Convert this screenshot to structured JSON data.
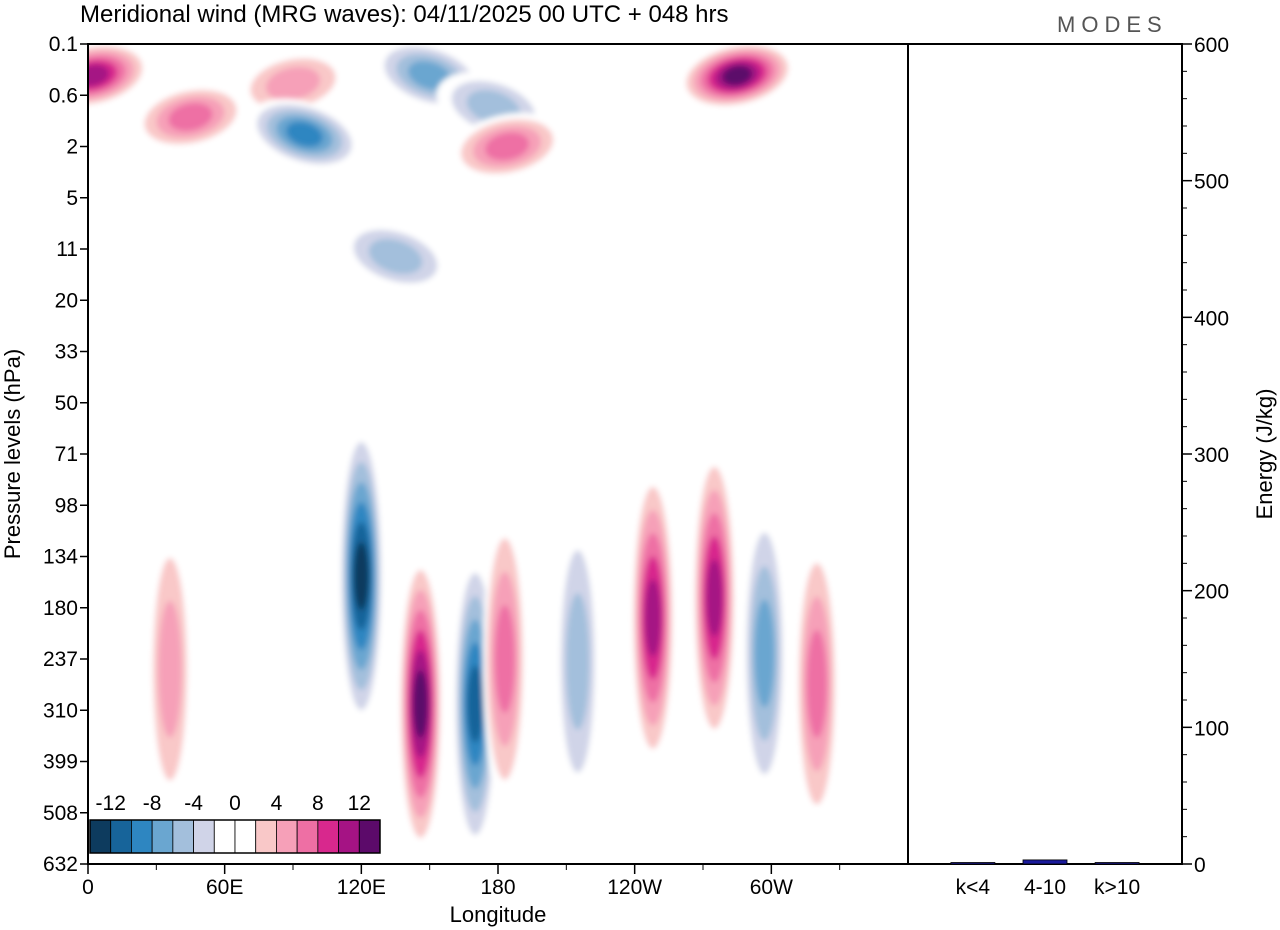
{
  "chart_data": [
    {
      "type": "heatmap",
      "title": "Meridional wind (MRG waves):  04/11/2025  00 UTC  + 048 hrs",
      "brand": "MODES",
      "xlabel": "Longitude",
      "ylabel": "Pressure levels (hPa)",
      "x_ticks": [
        "0",
        "60E",
        "120E",
        "180",
        "120W",
        "60W"
      ],
      "y_ticks": [
        "0.1",
        "0.6",
        "2",
        "5",
        "11",
        "20",
        "33",
        "50",
        "71",
        "98",
        "134",
        "180",
        "237",
        "310",
        "399",
        "508",
        "632"
      ],
      "colorbar": {
        "labels": [
          "-12",
          "-8",
          "-4",
          "0",
          "4",
          "8",
          "12"
        ],
        "colors": [
          "#0d3b5e",
          "#17649a",
          "#2e86c1",
          "#6aa6d0",
          "#a3bfdc",
          "#d0d4e8",
          "#ffffff",
          "#ffffff",
          "#f9c8c8",
          "#f6a0b8",
          "#ee6fa4",
          "#d8288d",
          "#a51384",
          "#5c0a6a"
        ]
      },
      "features": [
        {
          "lon": 2,
          "plev": 0.3,
          "value": 12
        },
        {
          "lon": 45,
          "plev": 1,
          "value": 8
        },
        {
          "lon": 90,
          "plev": 0.4,
          "value": 6
        },
        {
          "lon": 95,
          "plev": 1.5,
          "value": -10
        },
        {
          "lon": 150,
          "plev": 0.3,
          "value": -8
        },
        {
          "lon": 135,
          "plev": 12,
          "value": -6
        },
        {
          "lon": 178,
          "plev": 0.8,
          "value": -6
        },
        {
          "lon": 184,
          "plev": 2,
          "value": 7
        },
        {
          "lon": 285,
          "plev": 0.3,
          "value": 14
        },
        {
          "lon": 120,
          "plev": 150,
          "value": -14
        },
        {
          "lon": 146,
          "plev": 300,
          "value": 14
        },
        {
          "lon": 170,
          "plev": 300,
          "value": -12
        },
        {
          "lon": 183,
          "plev": 237,
          "value": 8
        },
        {
          "lon": 215,
          "plev": 240,
          "value": -6
        },
        {
          "lon": 248,
          "plev": 190,
          "value": 12
        },
        {
          "lon": 275,
          "plev": 170,
          "value": 12
        },
        {
          "lon": 36,
          "plev": 250,
          "value": 6
        },
        {
          "lon": 297,
          "plev": 230,
          "value": -8
        },
        {
          "lon": 320,
          "plev": 270,
          "value": 8
        }
      ]
    },
    {
      "type": "bar",
      "categories": [
        "k<4",
        "4-10",
        "k>10"
      ],
      "values": [
        0,
        3,
        0
      ],
      "ylabel": "Energy (J/kg)",
      "ylim": [
        0,
        600
      ],
      "y_ticks": [
        "0",
        "100",
        "200",
        "300",
        "400",
        "500",
        "600"
      ],
      "color": "#1a1a9c"
    }
  ]
}
